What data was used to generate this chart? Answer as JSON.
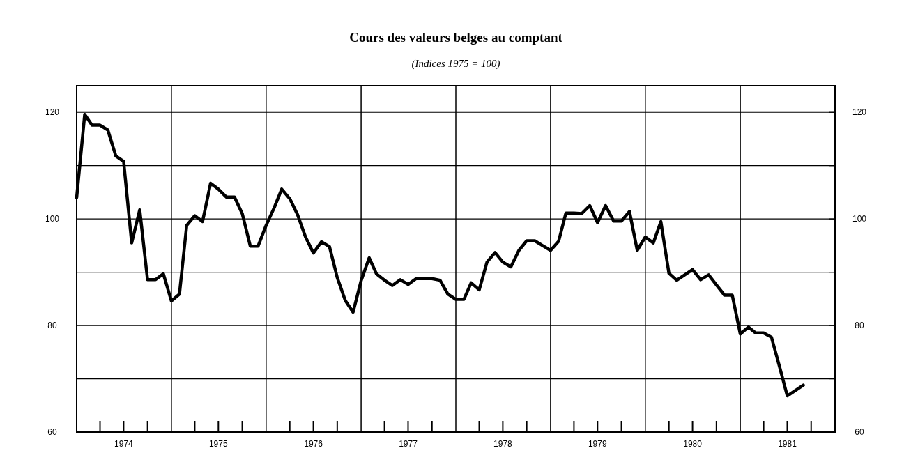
{
  "chart_data": {
    "type": "line",
    "title": "Cours des valeurs belges au comptant",
    "subtitle": "(Indices 1975 = 100)",
    "x": [
      "1974-01",
      "1974-02",
      "1974-03",
      "1974-04",
      "1974-05",
      "1974-06",
      "1974-07",
      "1974-08",
      "1974-09",
      "1974-10",
      "1974-11",
      "1974-12",
      "1975-01",
      "1975-02",
      "1975-03",
      "1975-04",
      "1975-05",
      "1975-06",
      "1975-07",
      "1975-08",
      "1975-09",
      "1975-10",
      "1975-11",
      "1975-12",
      "1976-01",
      "1976-02",
      "1976-03",
      "1976-04",
      "1976-05",
      "1976-06",
      "1976-07",
      "1976-08",
      "1976-09",
      "1976-10",
      "1976-11",
      "1976-12",
      "1977-01",
      "1977-02",
      "1977-03",
      "1977-04",
      "1977-05",
      "1977-06",
      "1977-07",
      "1977-08",
      "1977-09",
      "1977-10",
      "1977-11",
      "1977-12",
      "1978-01",
      "1978-02",
      "1978-03",
      "1978-04",
      "1978-05",
      "1978-06",
      "1978-07",
      "1978-08",
      "1978-09",
      "1978-10",
      "1978-11",
      "1978-12",
      "1979-01",
      "1979-02",
      "1979-03",
      "1979-04",
      "1979-05",
      "1979-06",
      "1979-07",
      "1979-08",
      "1979-09",
      "1979-10",
      "1979-11",
      "1979-12",
      "1980-01",
      "1980-02",
      "1980-03",
      "1980-04",
      "1980-05",
      "1980-06",
      "1980-07",
      "1980-08",
      "1980-09",
      "1980-10",
      "1980-11",
      "1980-12",
      "1981-01",
      "1981-02",
      "1981-03",
      "1981-04",
      "1981-05",
      "1981-06",
      "1981-07",
      "1981-08",
      "1981-09"
    ],
    "series": [
      {
        "color": "#000000",
        "values": [
          104,
          119.6,
          117.6,
          117.6,
          116.7,
          111.8,
          110.8,
          95.5,
          101.7,
          88.6,
          88.6,
          89.7,
          84.6,
          85.9,
          98.8,
          100.6,
          99.5,
          106.7,
          105.6,
          104.1,
          104.1,
          101,
          94.9,
          94.9,
          98.8,
          102.1,
          105.6,
          103.8,
          100.8,
          96.6,
          93.6,
          95.7,
          94.8,
          89,
          84.7,
          82.5,
          88.4,
          92.7,
          89.7,
          88.5,
          87.5,
          88.6,
          87.7,
          88.8,
          88.8,
          88.8,
          88.5,
          85.9,
          84.9,
          84.9,
          88,
          86.7,
          91.9,
          93.7,
          91.9,
          91,
          94.1,
          95.9,
          95.9,
          95,
          94.1,
          95.8,
          101.1,
          101.1,
          101,
          102.5,
          99.3,
          102.5,
          99.6,
          99.6,
          101.4,
          94.1,
          96.6,
          95.5,
          99.5,
          89.8,
          88.5,
          89.5,
          90.5,
          88.6,
          89.5,
          87.6,
          85.7,
          85.7,
          78.4,
          79.7,
          78.6,
          78.6,
          77.8,
          72.3,
          66.8,
          67.8,
          68.8
        ]
      }
    ],
    "xlim": [
      "1974-01",
      "1982-01"
    ],
    "xticks": [
      {
        "value": "1974-04",
        "label": null
      },
      {
        "value": "1974-07",
        "label": "1974"
      },
      {
        "value": "1974-10",
        "label": null
      },
      {
        "value": "1975-04",
        "label": null
      },
      {
        "value": "1975-07",
        "label": "1975"
      },
      {
        "value": "1975-10",
        "label": null
      },
      {
        "value": "1976-04",
        "label": null
      },
      {
        "value": "1976-07",
        "label": "1976"
      },
      {
        "value": "1976-10",
        "label": null
      },
      {
        "value": "1977-04",
        "label": null
      },
      {
        "value": "1977-07",
        "label": "1977"
      },
      {
        "value": "1977-10",
        "label": null
      },
      {
        "value": "1978-04",
        "label": null
      },
      {
        "value": "1978-07",
        "label": "1978"
      },
      {
        "value": "1978-10",
        "label": null
      },
      {
        "value": "1979-04",
        "label": null
      },
      {
        "value": "1979-07",
        "label": "1979"
      },
      {
        "value": "1979-10",
        "label": null
      },
      {
        "value": "1980-04",
        "label": null
      },
      {
        "value": "1980-07",
        "label": "1980"
      },
      {
        "value": "1980-10",
        "label": null
      },
      {
        "value": "1981-04",
        "label": null
      },
      {
        "value": "1981-07",
        "label": "1981"
      },
      {
        "value": "1981-10",
        "label": null
      }
    ],
    "ylim": [
      60,
      125
    ],
    "yticks": [
      60,
      {
        "value": 70,
        "label": null
      },
      80,
      {
        "value": 90,
        "label": null
      },
      100,
      {
        "value": 110,
        "label": null
      },
      120
    ],
    "y2lim": [
      60,
      125
    ],
    "y2ticks": [
      60,
      {
        "value": 70,
        "label": null
      },
      80,
      {
        "value": 90,
        "label": null
      },
      100,
      {
        "value": 110,
        "label": null
      },
      120
    ],
    "ref_lines": [
      {
        "axis": "x",
        "value": "1975-01"
      },
      {
        "axis": "x",
        "value": "1976-01"
      },
      {
        "axis": "x",
        "value": "1977-01"
      },
      {
        "axis": "x",
        "value": "1978-01"
      },
      {
        "axis": "x",
        "value": "1979-01"
      },
      {
        "axis": "x",
        "value": "1980-01"
      },
      {
        "axis": "x",
        "value": "1981-01"
      }
    ],
    "grid": "y",
    "marker": "none",
    "line_style": "solid"
  }
}
